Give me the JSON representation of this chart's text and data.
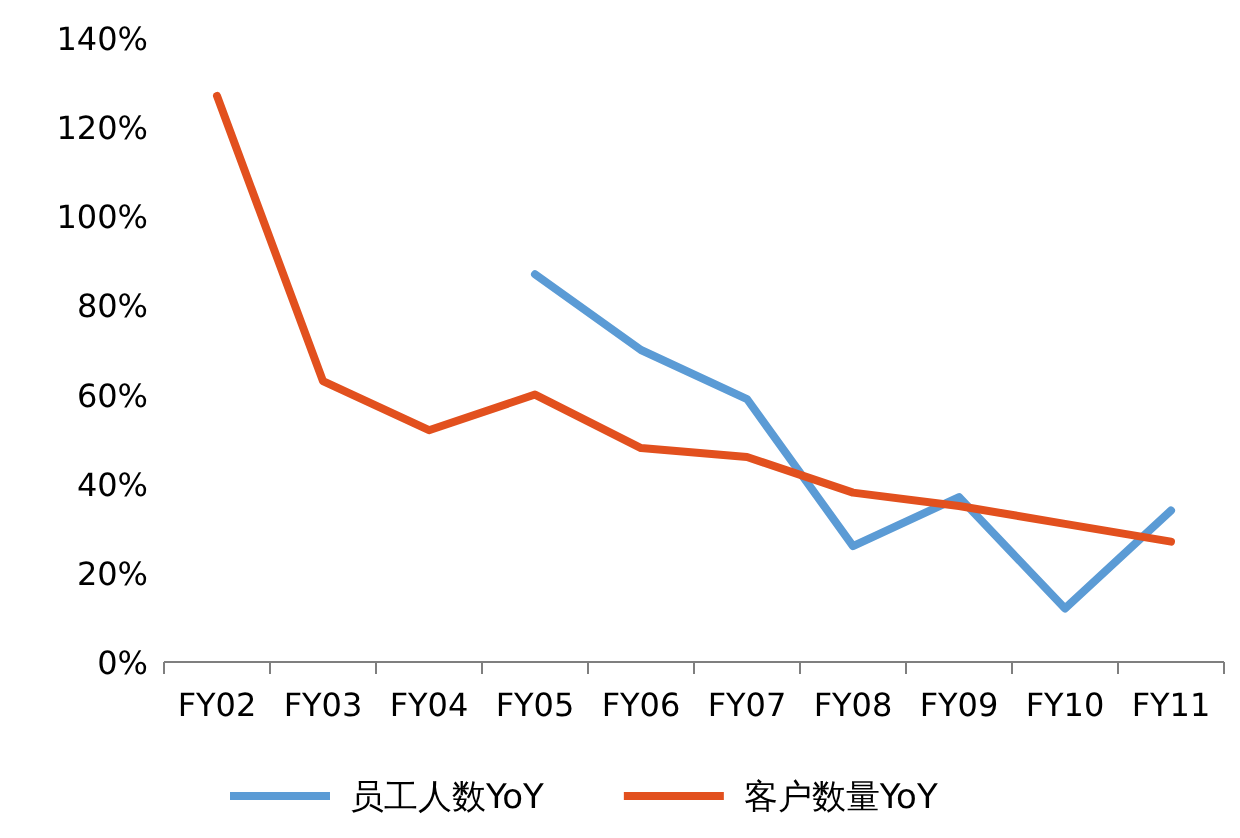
{
  "chart_data": {
    "type": "line",
    "categories": [
      "FY02",
      "FY03",
      "FY04",
      "FY05",
      "FY06",
      "FY07",
      "FY08",
      "FY09",
      "FY10",
      "FY11"
    ],
    "series": [
      {
        "name": "员工人数YoY",
        "color": "#5b9bd5",
        "values": [
          null,
          null,
          null,
          87,
          70,
          59,
          26,
          37,
          12,
          34
        ]
      },
      {
        "name": "客户数量YoY",
        "color": "#e2501e",
        "values": [
          127,
          63,
          52,
          60,
          48,
          46,
          38,
          35,
          31,
          27
        ]
      }
    ],
    "ylim": [
      0,
      140
    ],
    "yticks": [
      {
        "value": 0,
        "label": "0%"
      },
      {
        "value": 20,
        "label": "20%"
      },
      {
        "value": 40,
        "label": "40%"
      },
      {
        "value": 60,
        "label": "60%"
      },
      {
        "value": 80,
        "label": "80%"
      },
      {
        "value": 100,
        "label": "100%"
      },
      {
        "value": 120,
        "label": "120%"
      },
      {
        "value": 140,
        "label": "140%"
      }
    ],
    "legend": "bottom"
  }
}
